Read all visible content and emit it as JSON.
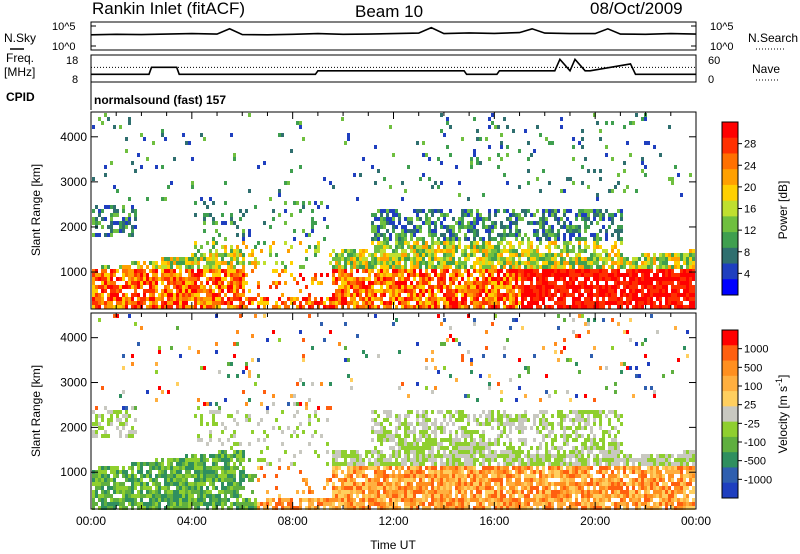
{
  "header": {
    "station": "Rankin Inlet (fitACF)",
    "beam": "Beam 10",
    "date": "08/Oct/2009"
  },
  "side_labels": {
    "nsky": "N.Sky",
    "freq_top": "Freq.",
    "freq_unit": "[MHz]",
    "cpid": "CPID",
    "nsearch": "N.Search",
    "nave": "Nave"
  },
  "cpid_text": "normalsound (fast) 157",
  "chart_data": [
    {
      "type": "line",
      "panel": "noise",
      "ytick_labels": [
        "10^5",
        "10^0"
      ],
      "right_tick_labels": [
        "10^5",
        "10^0"
      ],
      "series": [
        {
          "name": "N.Sky",
          "x": [
            0,
            1,
            2,
            3,
            4,
            5,
            5.5,
            6,
            7,
            8,
            9,
            10,
            11,
            12,
            13,
            13.5,
            14,
            15,
            16,
            17,
            17.5,
            18,
            19,
            20,
            20.5,
            21,
            22,
            23,
            24
          ],
          "values": [
            0.55,
            0.57,
            0.56,
            0.58,
            0.6,
            0.58,
            0.8,
            0.56,
            0.55,
            0.57,
            0.6,
            0.57,
            0.58,
            0.6,
            0.62,
            0.85,
            0.6,
            0.63,
            0.61,
            0.64,
            0.8,
            0.62,
            0.6,
            0.6,
            0.8,
            0.58,
            0.57,
            0.6,
            0.58
          ]
        }
      ]
    },
    {
      "type": "line",
      "panel": "frequency",
      "ytick_labels": [
        "18",
        "8"
      ],
      "right_tick_labels": [
        "60",
        "0"
      ],
      "series": [
        {
          "name": "Freq",
          "x": [
            0,
            2.3,
            2.4,
            3.4,
            3.5,
            8.9,
            9.0,
            14.8,
            14.9,
            16.1,
            16.2,
            18.4,
            18.6,
            19.0,
            19.2,
            19.6,
            19.8,
            21.4,
            21.6,
            24
          ],
          "values": [
            0.25,
            0.25,
            0.55,
            0.55,
            0.25,
            0.25,
            0.4,
            0.4,
            0.25,
            0.25,
            0.4,
            0.4,
            0.9,
            0.4,
            0.9,
            0.4,
            0.4,
            0.7,
            0.25,
            0.25
          ]
        },
        {
          "name": "Nave",
          "x": [
            0,
            24
          ],
          "values": [
            0.55,
            0.55
          ]
        }
      ]
    },
    {
      "type": "heatmap",
      "panel": "power",
      "xlabel": "",
      "ylabel": "Slant Range [km]",
      "xlim": [
        0,
        24
      ],
      "ylim": [
        180,
        4550
      ],
      "yticks": [
        1000,
        2000,
        3000,
        4000
      ],
      "colorbar_label": "Power [dB]",
      "colorbar_ticks": [
        "28",
        "24",
        "20",
        "16",
        "12",
        "8",
        "4"
      ],
      "colorbar_colors": [
        "#0000ff",
        "#1f3fbf",
        "#2f6f6f",
        "#3f9f4f",
        "#6fbf3f",
        "#bfdf2f",
        "#ffcf00",
        "#ffa000",
        "#ff7000",
        "#ff3000",
        "#ff0000"
      ]
    },
    {
      "type": "heatmap",
      "panel": "velocity",
      "xlabel": "Time UT",
      "ylabel": "Slant Range [km]",
      "xlim": [
        0,
        24
      ],
      "ylim": [
        180,
        4550
      ],
      "yticks": [
        1000,
        2000,
        3000,
        4000
      ],
      "xtick_labels": [
        "00:00",
        "04:00",
        "08:00",
        "12:00",
        "16:00",
        "20:00",
        "00:00"
      ],
      "colorbar_label": "Velocity [m s^-1]",
      "colorbar_ticks": [
        "1000",
        "500",
        "100",
        "25",
        "-25",
        "-100",
        "-500",
        "-1000"
      ],
      "colorbar_colors": [
        "#1f3fbf",
        "#2f5faf",
        "#2f8f5f",
        "#5faf3f",
        "#8fcf2f",
        "#c8c8c0",
        "#ffcf5f",
        "#ffaf3f",
        "#ff8f1f",
        "#ff5f0f",
        "#ff0000"
      ]
    }
  ]
}
